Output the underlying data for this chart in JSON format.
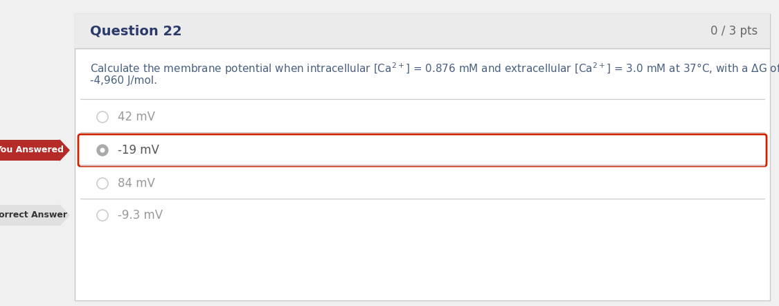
{
  "question_number": "Question 22",
  "pts": "0 / 3 pts",
  "line1": "Calculate the membrane potential when intracellular [Ca$^{2+}$] = 0.876 mM and extracellular [Ca$^{2+}$] = 3.0 mM at 37°C, with a ΔG of",
  "line2": "-4,960 J/mol.",
  "options": [
    "42 mV",
    "-19 mV",
    "84 mV",
    "-9.3 mV"
  ],
  "you_answered_option": "-19 mV",
  "correct_answer_option": "-9.3 mV",
  "you_answered_label": "You Answered",
  "correct_answer_label": "Correct Answer",
  "bg_color": "#f0f0f0",
  "white": "#ffffff",
  "border_color": "#c8c8c8",
  "header_bg": "#ebebeb",
  "question_bold_color": "#2b3a6b",
  "pts_color": "#666666",
  "option_normal_color": "#999999",
  "option_selected_color": "#555555",
  "you_answered_bg": "#b52b27",
  "you_answered_text_color": "#ffffff",
  "correct_answer_bg": "#e0e0e0",
  "correct_answer_text_color": "#333333",
  "selected_border_color": "#cc2200",
  "question_text_color": "#4a6080",
  "radio_selected_color": "#aaaaaa",
  "radio_normal_color": "#cccccc",
  "top_strip_color": "#e0e0e0"
}
